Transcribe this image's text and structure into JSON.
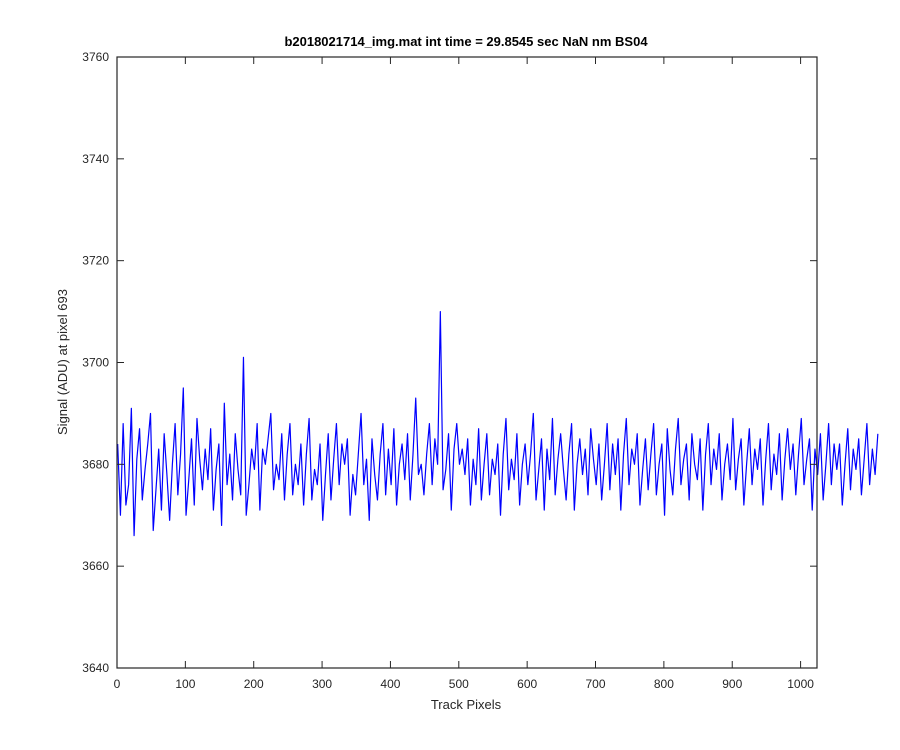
{
  "chart_data": {
    "type": "line",
    "title": "b2018021714_img.mat int time = 29.8545 sec  NaN nm BS04",
    "xlabel": "Track Pixels",
    "ylabel": "Signal (ADU) at pixel 693",
    "xlim": [
      0,
      1024
    ],
    "ylim": [
      3640,
      3760
    ],
    "x_ticks": [
      0,
      100,
      200,
      300,
      400,
      500,
      600,
      700,
      800,
      900,
      1000
    ],
    "y_ticks": [
      3640,
      3660,
      3680,
      3700,
      3720,
      3740,
      3760
    ],
    "grid": false,
    "legend": "none",
    "line_color": "#0000ff",
    "x_start": 1,
    "x_step": 4,
    "values": [
      3684,
      3670,
      3688,
      3672,
      3676,
      3691,
      3666,
      3681,
      3687,
      3673,
      3679,
      3684,
      3690,
      3667,
      3675,
      3683,
      3671,
      3686,
      3678,
      3669,
      3680,
      3688,
      3674,
      3682,
      3695,
      3670,
      3677,
      3685,
      3672,
      3689,
      3681,
      3675,
      3683,
      3677,
      3687,
      3671,
      3679,
      3684,
      3668,
      3692,
      3676,
      3682,
      3673,
      3686,
      3679,
      3674,
      3701,
      3670,
      3676,
      3683,
      3679,
      3688,
      3671,
      3683,
      3680,
      3685,
      3690,
      3675,
      3680,
      3677,
      3686,
      3673,
      3682,
      3688,
      3674,
      3680,
      3676,
      3684,
      3672,
      3682,
      3689,
      3673,
      3679,
      3676,
      3684,
      3669,
      3678,
      3686,
      3673,
      3681,
      3688,
      3676,
      3684,
      3680,
      3685,
      3670,
      3678,
      3674,
      3682,
      3690,
      3676,
      3681,
      3669,
      3685,
      3678,
      3673,
      3682,
      3688,
      3674,
      3683,
      3676,
      3687,
      3672,
      3680,
      3684,
      3677,
      3686,
      3673,
      3682,
      3693,
      3678,
      3680,
      3674,
      3682,
      3688,
      3676,
      3685,
      3680,
      3710,
      3675,
      3679,
      3686,
      3671,
      3683,
      3688,
      3680,
      3683,
      3678,
      3685,
      3672,
      3681,
      3676,
      3687,
      3673,
      3680,
      3686,
      3674,
      3681,
      3678,
      3684,
      3670,
      3682,
      3689,
      3675,
      3681,
      3677,
      3686,
      3672,
      3680,
      3684,
      3676,
      3682,
      3690,
      3673,
      3679,
      3685,
      3671,
      3683,
      3677,
      3689,
      3674,
      3681,
      3686,
      3679,
      3673,
      3682,
      3688,
      3671,
      3680,
      3685,
      3678,
      3683,
      3674,
      3687,
      3681,
      3676,
      3684,
      3673,
      3680,
      3688,
      3675,
      3684,
      3678,
      3685,
      3671,
      3682,
      3689,
      3676,
      3683,
      3680,
      3686,
      3672,
      3679,
      3685,
      3675,
      3682,
      3688,
      3674,
      3680,
      3684,
      3670,
      3687,
      3679,
      3674,
      3683,
      3689,
      3676,
      3681,
      3684,
      3673,
      3686,
      3680,
      3677,
      3685,
      3671,
      3682,
      3688,
      3676,
      3683,
      3679,
      3686,
      3673,
      3680,
      3684,
      3677,
      3689,
      3675,
      3681,
      3685,
      3672,
      3680,
      3687,
      3676,
      3683,
      3679,
      3685,
      3672,
      3681,
      3688,
      3675,
      3682,
      3678,
      3686,
      3673,
      3681,
      3687,
      3679,
      3684,
      3674,
      3682,
      3689,
      3676,
      3681,
      3685,
      3671,
      3683,
      3678,
      3686,
      3673,
      3680,
      3688,
      3676,
      3684,
      3679,
      3684,
      3672,
      3680,
      3687,
      3675,
      3683,
      3679,
      3685,
      3674,
      3681,
      3688,
      3676,
      3683,
      3678,
      3686
    ]
  }
}
